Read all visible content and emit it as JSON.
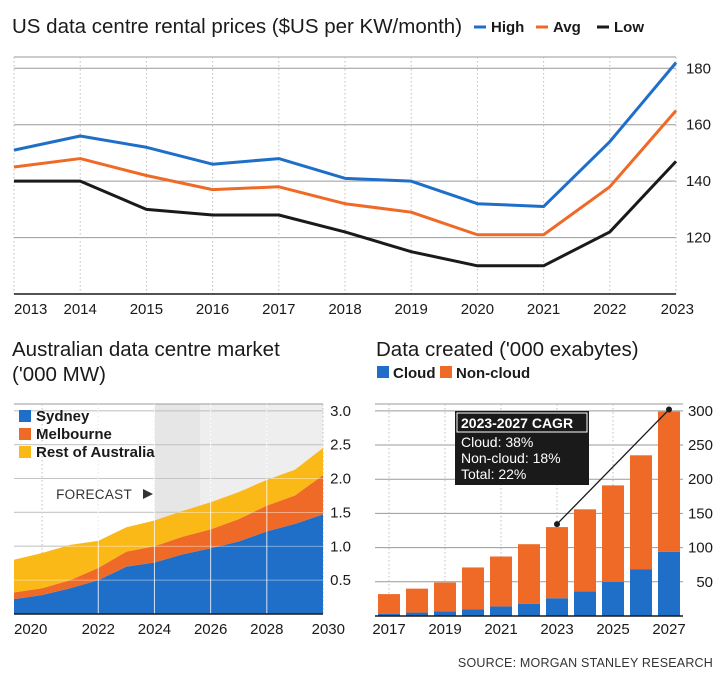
{
  "colors": {
    "high": "#1f6fc8",
    "avg": "#ef6a26",
    "low": "#1a1a1a",
    "sydney": "#1f6fc8",
    "melbourne": "#ef6a26",
    "rest": "#fbb918",
    "cloud": "#1f6fc8",
    "noncloud": "#ef6a26",
    "grid": "#9a9a9a"
  },
  "chart_data": [
    {
      "type": "line",
      "title": "US data centre rental prices ($US per KW/month)",
      "x": [
        2013,
        2014,
        2015,
        2016,
        2017,
        2018,
        2019,
        2020,
        2021,
        2022,
        2023
      ],
      "yticks": [
        120,
        140,
        160,
        180
      ],
      "ylim": [
        100,
        184
      ],
      "legend_position": "top-right",
      "series": [
        {
          "name": "High",
          "color_key": "high",
          "values": [
            151,
            156,
            152,
            146,
            148,
            141,
            140,
            132,
            131,
            154,
            182
          ]
        },
        {
          "name": "Avg",
          "color_key": "avg",
          "values": [
            145,
            148,
            142,
            137,
            138,
            132,
            129,
            121,
            121,
            138,
            165
          ]
        },
        {
          "name": "Low",
          "color_key": "low",
          "values": [
            140,
            140,
            130,
            128,
            128,
            122,
            115,
            110,
            110,
            122,
            147
          ]
        }
      ],
      "source": ""
    },
    {
      "type": "area",
      "title": "Australian data centre market ('000 MW)",
      "title_lines": [
        "Australian data centre market",
        "('000 MW)"
      ],
      "xticks": [
        2020,
        2022,
        2024,
        2026,
        2028,
        2030
      ],
      "x": [
        2019,
        2020,
        2021,
        2022,
        2023,
        2024,
        2025,
        2026,
        2027,
        2028,
        2029,
        2030
      ],
      "yticks": [
        0.5,
        1.0,
        1.5,
        2.0,
        2.5,
        3.0
      ],
      "ylim": [
        0,
        3.1
      ],
      "stacked": true,
      "forecast_label": "FORECAST",
      "forecast_from": 2024,
      "legend_position": "top-left",
      "series": [
        {
          "name": "Sydney",
          "color_key": "sydney",
          "values": [
            0.22,
            0.28,
            0.38,
            0.5,
            0.7,
            0.76,
            0.88,
            0.97,
            1.07,
            1.22,
            1.33,
            1.47
          ]
        },
        {
          "name": "Melbourne",
          "color_key": "melbourne",
          "values": [
            0.1,
            0.1,
            0.12,
            0.18,
            0.22,
            0.24,
            0.26,
            0.28,
            0.33,
            0.38,
            0.42,
            0.58
          ]
        },
        {
          "name": "Rest of Australia",
          "color_key": "rest",
          "values": [
            0.48,
            0.52,
            0.52,
            0.4,
            0.36,
            0.38,
            0.38,
            0.4,
            0.4,
            0.38,
            0.38,
            0.4
          ]
        }
      ]
    },
    {
      "type": "bar",
      "title": "Data created ('000 exabytes)",
      "stacked": true,
      "categories": [
        2017,
        2018,
        2019,
        2020,
        2021,
        2022,
        2023,
        2024,
        2025,
        2026,
        2027
      ],
      "xticks": [
        2017,
        2019,
        2021,
        2023,
        2025,
        2027
      ],
      "yticks": [
        50,
        100,
        150,
        200,
        250,
        300
      ],
      "ylim": [
        0,
        310
      ],
      "legend_position": "top-left",
      "series": [
        {
          "name": "Cloud",
          "color_key": "cloud",
          "values": [
            3,
            5,
            7,
            10,
            14,
            18,
            26,
            36,
            50,
            68,
            94
          ]
        },
        {
          "name": "Non-cloud",
          "color_key": "noncloud",
          "values": [
            29,
            35,
            42,
            61,
            73,
            87,
            104,
            120,
            141,
            167,
            205
          ]
        }
      ],
      "annotation": {
        "title": "2023-2027 CAGR",
        "lines": [
          "Cloud: 38%",
          "Non-cloud: 18%",
          "Total: 22%"
        ],
        "from_category": 2023,
        "to_category": 2027
      }
    }
  ],
  "source": "SOURCE: MORGAN STANLEY RESEARCH"
}
